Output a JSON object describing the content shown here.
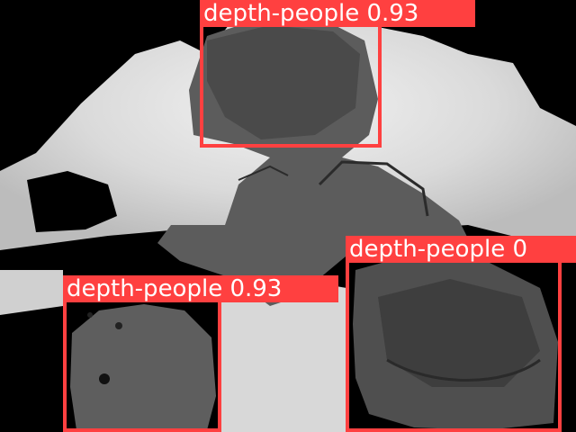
{
  "image": {
    "description_colors": {
      "background": "#000000",
      "bright_region": "#e6e6e6",
      "mid_region": "#bdbdbd",
      "people_gray": "#5a5a5a",
      "people_dark": "#444444"
    }
  },
  "detections": [
    {
      "label": "depth-people 0.93",
      "color": "#ff4040"
    },
    {
      "label": "depth-people 0",
      "color": "#ff4040"
    },
    {
      "label": "depth-people 0.93",
      "color": "#ff4040"
    }
  ]
}
